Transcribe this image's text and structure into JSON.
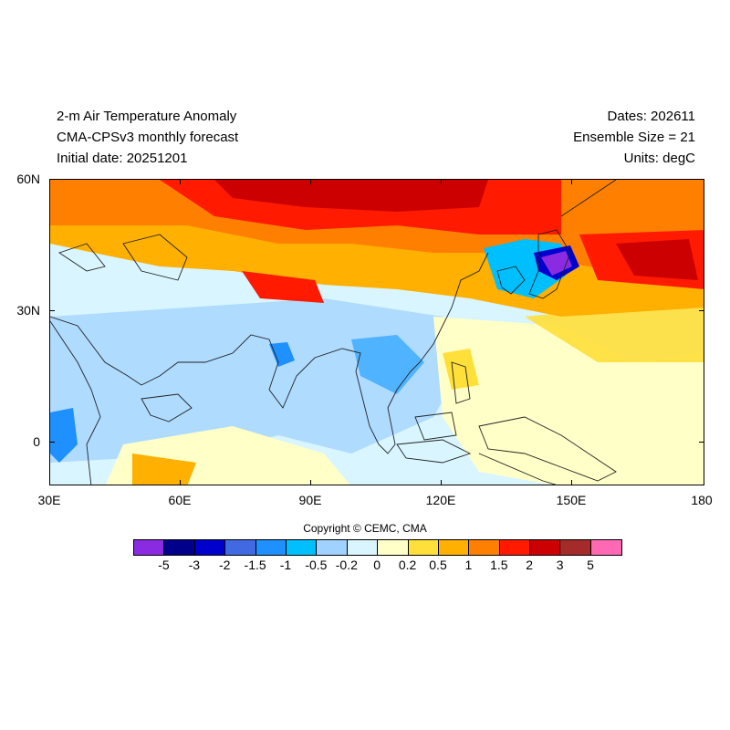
{
  "header": {
    "title_line1": "2-m Air Temperature Anomaly",
    "title_line2": "CMA-CPSv3 monthly forecast",
    "title_line3": "Initial date: 20251201",
    "dates": "Dates: 202611",
    "ensemble": "Ensemble Size = 21",
    "units": "Units: degC"
  },
  "axes": {
    "y_labels": [
      "60N",
      "30N",
      "0"
    ],
    "x_labels": [
      "30E",
      "60E",
      "90E",
      "120E",
      "150E",
      "180"
    ]
  },
  "copyright": "Copyright © CEMC, CMA",
  "colorbar": {
    "colors": [
      "#8a2be2",
      "#00008b",
      "#0000cd",
      "#4169e1",
      "#1e90ff",
      "#00bfff",
      "#a0d2ff",
      "#d9f5ff",
      "#ffffc8",
      "#ffdf3a",
      "#ffb000",
      "#ff7f00",
      "#ff1a00",
      "#cc0000",
      "#a52a2a",
      "#ff69b4"
    ],
    "labels": [
      "-5",
      "-3",
      "-2",
      "-1.5",
      "-1",
      "-0.5",
      "-0.2",
      "0",
      "0.2",
      "0.5",
      "1",
      "1.5",
      "2",
      "3",
      "5"
    ]
  }
}
